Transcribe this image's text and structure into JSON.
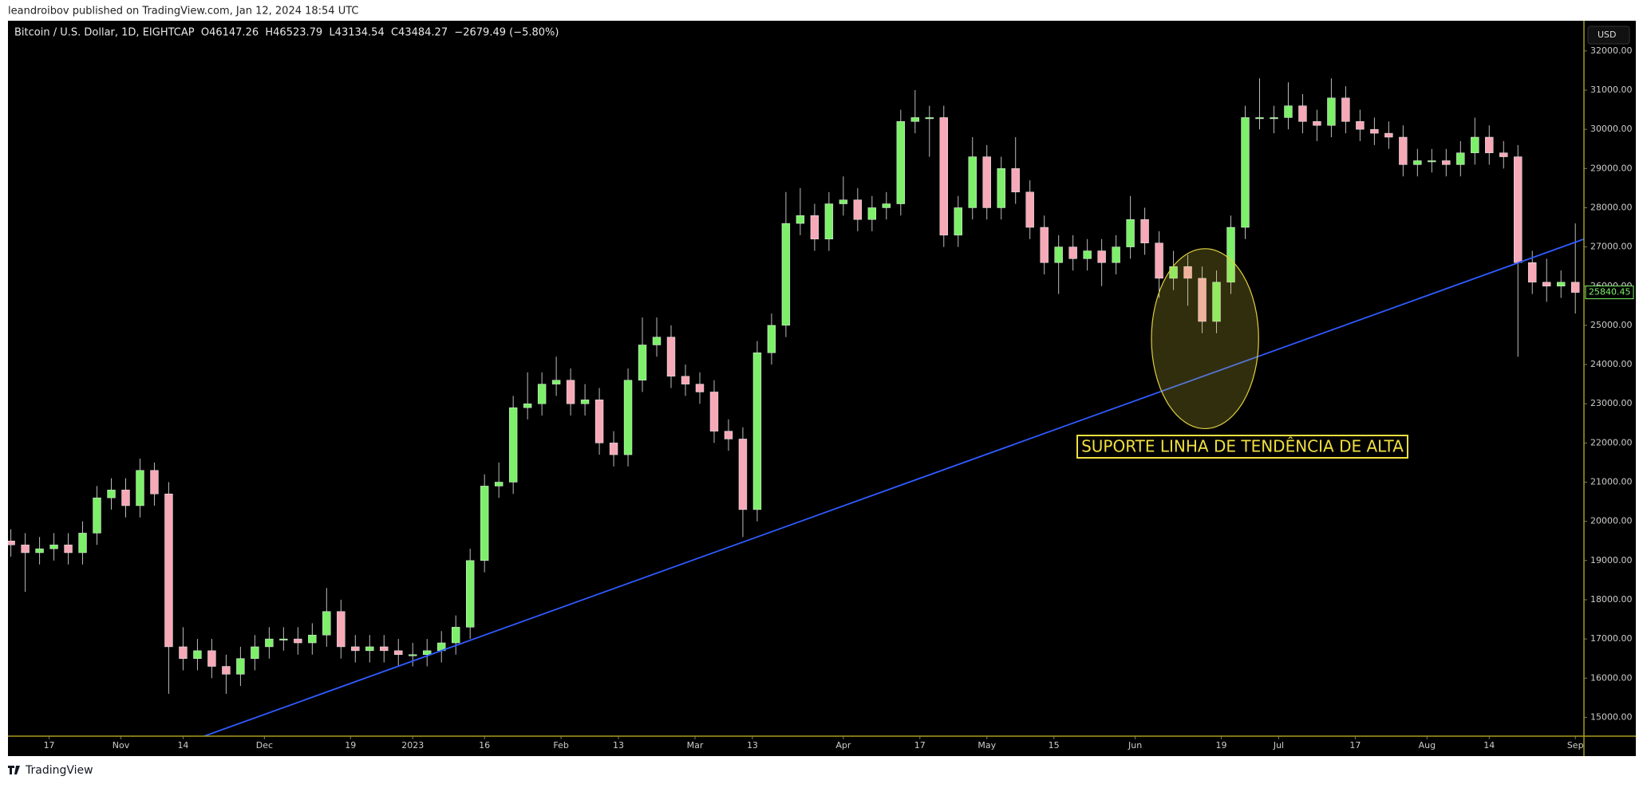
{
  "publisher": "leandroibov published on TradingView.com, Jan 12, 2024 18:54 UTC",
  "footer": "TradingView",
  "chart_data": {
    "type": "candlestick",
    "title": "Bitcoin / U.S. Dollar, 1D, EIGHTCAP  O46147.26  H46523.79  L43134.54  C43484.27  −2679.49 (−5.80%)",
    "currency": "USD",
    "up_color": "#7df06a",
    "down_color": "#f7a9b8",
    "background": "#000000",
    "axis_color": "#a89a1e",
    "xlim": [
      -8.6,
      320.8
    ],
    "ylim": [
      14520,
      32750
    ],
    "xticks": [
      {
        "value": 0,
        "label": "17"
      },
      {
        "value": 15,
        "label": "Nov"
      },
      {
        "value": 28,
        "label": "14"
      },
      {
        "value": 45,
        "label": "Dec"
      },
      {
        "value": 63,
        "label": "19"
      },
      {
        "value": 76,
        "label": "2023"
      },
      {
        "value": 91,
        "label": "16"
      },
      {
        "value": 107,
        "label": "Feb"
      },
      {
        "value": 119,
        "label": "13"
      },
      {
        "value": 135,
        "label": "Mar"
      },
      {
        "value": 147,
        "label": "13"
      },
      {
        "value": 166,
        "label": "Apr"
      },
      {
        "value": 182,
        "label": "17"
      },
      {
        "value": 196,
        "label": "May"
      },
      {
        "value": 210,
        "label": "15"
      },
      {
        "value": 227,
        "label": "Jun"
      },
      {
        "value": 245,
        "label": "19"
      },
      {
        "value": 257,
        "label": "Jul"
      },
      {
        "value": 273,
        "label": "17"
      },
      {
        "value": 288,
        "label": "Aug"
      },
      {
        "value": 301,
        "label": "14"
      },
      {
        "value": 319,
        "label": "Sep"
      }
    ],
    "yticks": [
      {
        "value": 15000,
        "label": "15000.00"
      },
      {
        "value": 16000,
        "label": "16000.00"
      },
      {
        "value": 17000,
        "label": "17000.00"
      },
      {
        "value": 18000,
        "label": "18000.00"
      },
      {
        "value": 19000,
        "label": "19000.00"
      },
      {
        "value": 20000,
        "label": "20000.00"
      },
      {
        "value": 21000,
        "label": "21000.00"
      },
      {
        "value": 22000,
        "label": "22000.00"
      },
      {
        "value": 23000,
        "label": "23000.00"
      },
      {
        "value": 24000,
        "label": "24000.00"
      },
      {
        "value": 25000,
        "label": "25000.00"
      },
      {
        "value": 26000,
        "label": "26000.00"
      },
      {
        "value": 27000,
        "label": "27000.00"
      },
      {
        "value": 28000,
        "label": "28000.00"
      },
      {
        "value": 29000,
        "label": "29000.00"
      },
      {
        "value": 30000,
        "label": "30000.00"
      },
      {
        "value": 31000,
        "label": "31000.00"
      },
      {
        "value": 32000,
        "label": "32000.00"
      }
    ],
    "last_price": 25840.45,
    "x": [
      -8,
      -5,
      -2,
      1,
      4,
      7,
      10,
      13,
      16,
      19,
      22,
      25,
      28,
      31,
      34,
      37,
      40,
      43,
      46,
      49,
      52,
      55,
      58,
      61,
      64,
      67,
      70,
      73,
      76,
      79,
      82,
      85,
      88,
      91,
      94,
      97,
      100,
      103,
      106,
      109,
      112,
      115,
      118,
      121,
      124,
      127,
      130,
      133,
      136,
      139,
      142,
      145,
      148,
      151,
      154,
      157,
      160,
      163,
      166,
      169,
      172,
      175,
      178,
      181,
      184,
      187,
      190,
      193,
      196,
      199,
      202,
      205,
      208,
      211,
      214,
      217,
      220,
      223,
      226,
      229,
      232,
      235,
      238,
      241,
      244,
      247,
      250,
      253,
      256,
      259,
      262,
      265,
      268,
      271,
      274,
      277,
      280,
      283,
      286,
      289,
      292,
      295,
      298,
      301,
      304,
      307,
      310,
      313,
      316,
      319
    ],
    "open": [
      19500,
      19400,
      19200,
      19300,
      19400,
      19200,
      19700,
      20600,
      20800,
      20400,
      21300,
      20700,
      16800,
      16500,
      16700,
      16300,
      16100,
      16500,
      16800,
      17000,
      17000,
      16900,
      17100,
      17700,
      16800,
      16700,
      16800,
      16700,
      16600,
      16600,
      16700,
      16900,
      17300,
      19000,
      20900,
      21000,
      22900,
      23000,
      23500,
      23600,
      23000,
      23100,
      22000,
      21700,
      23600,
      24500,
      24700,
      23700,
      23500,
      23300,
      22300,
      22100,
      20300,
      24300,
      25000,
      27600,
      27800,
      27200,
      28100,
      28200,
      27700,
      28000,
      28100,
      30200,
      30300,
      30300,
      27300,
      28000,
      29300,
      28000,
      29000,
      28400,
      27500,
      26600,
      27000,
      26700,
      26900,
      26600,
      27000,
      27700,
      27100,
      26200,
      26500,
      26200,
      25100,
      26100,
      27500,
      30300,
      30300,
      30300,
      30600,
      30200,
      30100,
      30800,
      30200,
      30000,
      29900,
      29800,
      29100,
      29200,
      29200,
      29100,
      29400,
      29800,
      29400,
      29300,
      26600,
      26100,
      26000,
      26100
    ],
    "high": [
      19800,
      19700,
      19600,
      19700,
      19700,
      20000,
      20900,
      21100,
      21100,
      21600,
      21500,
      21000,
      17300,
      17000,
      17000,
      16600,
      16800,
      17100,
      17300,
      17300,
      17300,
      17400,
      18300,
      18000,
      17100,
      17100,
      17100,
      17000,
      16900,
      17000,
      17200,
      17600,
      19300,
      21200,
      21500,
      23200,
      23800,
      23800,
      24200,
      23900,
      23500,
      23400,
      22300,
      23900,
      25200,
      25200,
      25000,
      24000,
      23800,
      23600,
      22600,
      22400,
      24600,
      25300,
      28400,
      28500,
      28100,
      28400,
      28800,
      28500,
      28300,
      28400,
      30500,
      31000,
      30600,
      30600,
      28300,
      29800,
      29600,
      29300,
      29800,
      28700,
      27800,
      27300,
      27300,
      27200,
      27200,
      27300,
      28300,
      28000,
      27400,
      26900,
      26800,
      26500,
      26400,
      27800,
      30600,
      31300,
      30600,
      31200,
      30900,
      30500,
      31300,
      31100,
      30500,
      30300,
      30200,
      30100,
      29500,
      29500,
      29500,
      29700,
      30300,
      30100,
      29700,
      29600,
      26900,
      26700,
      26400,
      27600
    ],
    "low": [
      19100,
      18200,
      18900,
      19000,
      18900,
      18900,
      19400,
      20300,
      20100,
      20100,
      20400,
      15600,
      16200,
      16200,
      16000,
      15600,
      15800,
      16200,
      16500,
      16700,
      16600,
      16600,
      16800,
      16500,
      16400,
      16400,
      16400,
      16300,
      16300,
      16300,
      16400,
      16600,
      17000,
      18700,
      20600,
      20700,
      22600,
      22700,
      23200,
      22700,
      22700,
      21700,
      21400,
      21400,
      23300,
      24200,
      23400,
      23200,
      23000,
      22000,
      21800,
      19600,
      20000,
      24000,
      24700,
      27300,
      26900,
      26900,
      27800,
      27400,
      27400,
      27700,
      27800,
      29900,
      29300,
      27000,
      27000,
      27700,
      27700,
      27700,
      28100,
      27200,
      26300,
      25800,
      26400,
      26400,
      26000,
      26300,
      26700,
      26800,
      25700,
      25900,
      25500,
      24800,
      24800,
      25800,
      27200,
      30000,
      29900,
      30000,
      29900,
      29700,
      29800,
      29900,
      29700,
      29600,
      29500,
      28800,
      28800,
      28900,
      28800,
      28800,
      29100,
      29100,
      29000,
      24200,
      25800,
      25600,
      25700,
      25300
    ],
    "close": [
      19400,
      19200,
      19300,
      19400,
      19200,
      19700,
      20600,
      20800,
      20400,
      21300,
      20700,
      16800,
      16500,
      16700,
      16300,
      16100,
      16500,
      16800,
      17000,
      17000,
      16900,
      17100,
      17700,
      16800,
      16700,
      16800,
      16700,
      16600,
      16600,
      16700,
      16900,
      17300,
      19000,
      20900,
      21000,
      22900,
      23000,
      23500,
      23600,
      23000,
      23100,
      22000,
      21700,
      23600,
      24500,
      24700,
      23700,
      23500,
      23300,
      22300,
      22100,
      20300,
      24300,
      25000,
      27600,
      27800,
      27200,
      28100,
      28200,
      27700,
      28000,
      28100,
      30200,
      30300,
      30300,
      27300,
      28000,
      29300,
      28000,
      29000,
      28400,
      27500,
      26600,
      27000,
      26700,
      26900,
      26600,
      27000,
      27700,
      27100,
      26200,
      26500,
      26200,
      25100,
      26100,
      27500,
      30300,
      30300,
      30300,
      30600,
      30200,
      30100,
      30800,
      30200,
      30000,
      29900,
      29800,
      29100,
      29200,
      29200,
      29100,
      29400,
      29800,
      29400,
      29300,
      26600,
      26100,
      26000,
      26100,
      25840
    ],
    "trendline": {
      "color": "#2f5bff",
      "x": [
        32.4,
        320.8
      ],
      "y": [
        14520,
        27200
      ]
    },
    "highlight": {
      "color": "#e0d040",
      "x": 241.6,
      "y": 24660,
      "rx": 11.2,
      "ry": 2295
    },
    "annotation": "SUPORTE LINHA DE TENDÊNCIA DE ALTA"
  }
}
